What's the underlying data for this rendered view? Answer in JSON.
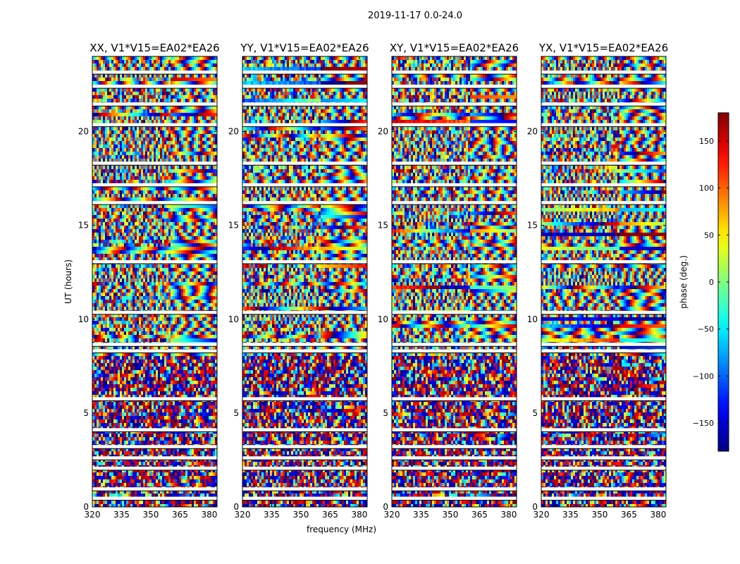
{
  "figure": {
    "suptitle": "2019-11-17 0.0-24.0"
  },
  "chart_data": [
    {
      "type": "heatmap",
      "title": "XX, V1*V15=EA02*EA26",
      "xlabel": "",
      "ylabel": "UT (hours)",
      "xlim": [
        320,
        384
      ],
      "ylim": [
        0,
        24
      ],
      "xticks": [
        320,
        335,
        350,
        365,
        380
      ],
      "yticks": [
        0,
        5,
        10,
        15,
        20
      ],
      "value_range": [
        -180,
        180
      ]
    },
    {
      "type": "heatmap",
      "title": "YY, V1*V15=EA02*EA26",
      "xlabel": "frequency (MHz)",
      "ylabel": "",
      "xlim": [
        320,
        384
      ],
      "ylim": [
        0,
        24
      ],
      "xticks": [
        320,
        335,
        350,
        365,
        380
      ],
      "yticks": [
        0,
        5,
        10,
        15,
        20
      ],
      "value_range": [
        -180,
        180
      ]
    },
    {
      "type": "heatmap",
      "title": "XY, V1*V15=EA02*EA26",
      "xlabel": "",
      "ylabel": "",
      "xlim": [
        320,
        384
      ],
      "ylim": [
        0,
        24
      ],
      "xticks": [
        320,
        335,
        350,
        365,
        380
      ],
      "yticks": [
        0,
        5,
        10,
        15,
        20
      ],
      "value_range": [
        -180,
        180
      ]
    },
    {
      "type": "heatmap",
      "title": "YX, V1*V15=EA02*EA26",
      "xlabel": "",
      "ylabel": "",
      "xlim": [
        320,
        384
      ],
      "ylim": [
        0,
        24
      ],
      "xticks": [
        320,
        335,
        350,
        365,
        380
      ],
      "yticks": [
        0,
        5,
        10,
        15,
        20
      ],
      "value_range": [
        -180,
        180
      ]
    }
  ],
  "colorbar": {
    "label": "phase (deg.)",
    "range": [
      -180,
      180
    ],
    "ticks": [
      -150,
      -100,
      -50,
      0,
      50,
      100,
      150
    ],
    "tick_labels": [
      "−150",
      "−100",
      "−50",
      "0",
      "50",
      "100",
      "150"
    ],
    "colormap": "jet"
  },
  "data_gaps_hours": [
    0.45,
    0.95,
    2.05,
    2.6,
    3.2,
    4.1,
    5.75,
    8.3,
    8.65,
    10.35,
    13.05,
    16.2,
    17.15,
    18.3,
    20.35,
    21.45,
    22.4,
    23.15
  ]
}
